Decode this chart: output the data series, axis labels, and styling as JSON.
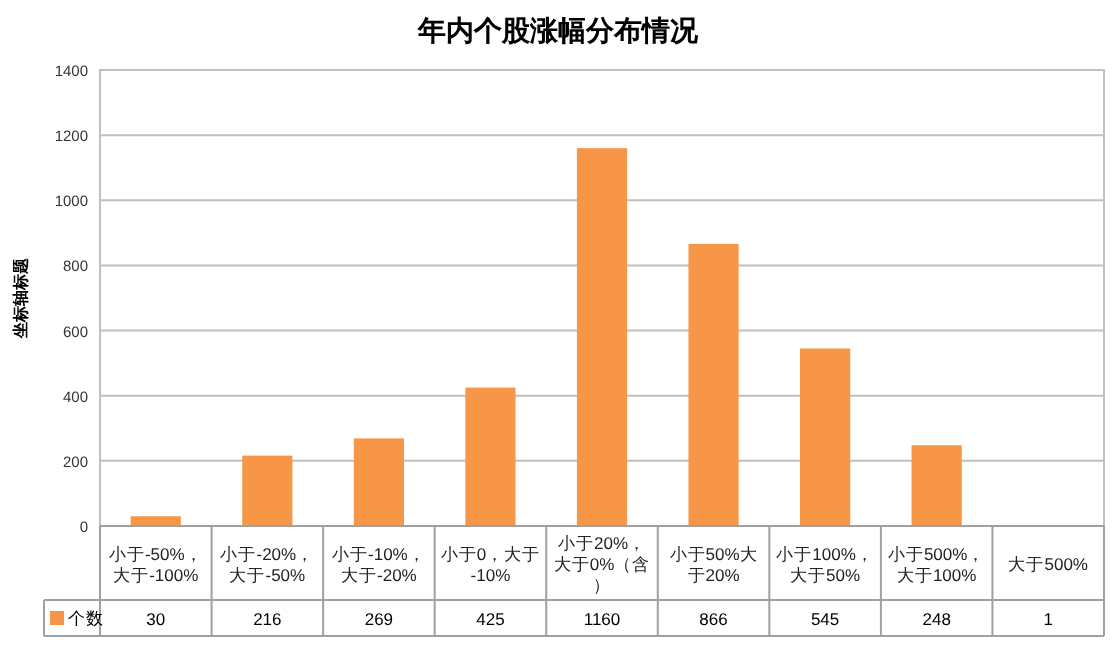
{
  "chart_data": {
    "type": "bar",
    "title": "年内个股涨幅分布情况",
    "ylabel": "坐标轴标题",
    "categories": [
      "小于-50%，大于-100%",
      "小于-20%，大于-50%",
      "小于-10%，大于-20%",
      "小于0，大于-10%",
      "小于20%，大于0%（含）",
      "小于50%大于20%",
      "小于100%，大于50%",
      "小于500%，大于100%",
      "大于500%"
    ],
    "series": [
      {
        "name": "个数",
        "color": "#f79646",
        "values": [
          30,
          216,
          269,
          425,
          1160,
          866,
          545,
          248,
          1
        ]
      }
    ],
    "ylim": [
      0,
      1400
    ],
    "yticks": [
      0,
      200,
      400,
      600,
      800,
      1000,
      1200,
      1400
    ],
    "grid": "y",
    "data_labels": true,
    "legend": "bottom"
  }
}
